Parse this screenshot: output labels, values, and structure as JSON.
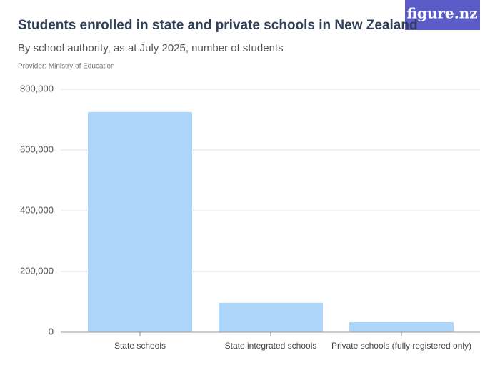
{
  "logo": "figure.nz",
  "chart_data": {
    "type": "bar",
    "title": "Students enrolled in state and private schools in New Zealand",
    "subtitle": "By school authority, as at July 2025, number of students",
    "source": "Provider: Ministry of Education",
    "categories": [
      "State schools",
      "State integrated schools",
      "Private schools (fully registered only)"
    ],
    "values": [
      725000,
      97000,
      33000
    ],
    "color": "#aed6fb",
    "ylim": [
      0,
      800000
    ],
    "yticks": [
      0,
      {
        "value": 200000,
        "label": "200,000"
      },
      {
        "value": 400000,
        "label": "400,000"
      },
      {
        "value": 600000,
        "label": "600,000"
      },
      {
        "value": 800000,
        "label": "800,000"
      }
    ],
    "grid": true
  }
}
